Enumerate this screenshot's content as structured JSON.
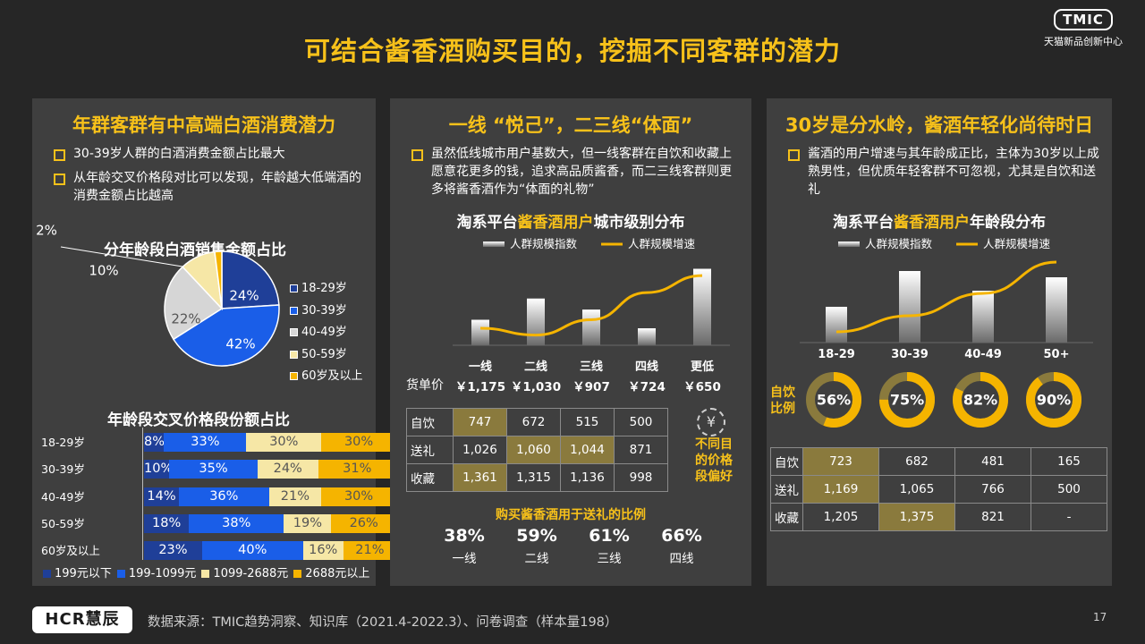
{
  "title": "可结合酱香酒购买目的，挖掘不同客群的潜力",
  "brand": {
    "logo": "TMIC",
    "sub": "天猫新品创新中心"
  },
  "left": {
    "title": "年群客群有中高端白酒消费潜力",
    "bullets": [
      "30-39岁人群的白酒消费金额占比最大",
      "从年龄交叉价格段对比可以发现，年龄越大低端酒的消费金额占比越高"
    ]
  },
  "middle": {
    "title": "一线 “悦己”，二三线“体面”",
    "bullet": "虽然低线城市用户基数大，但一线客群在自饮和收藏上愿意花更多的钱，追求高品质酱香，而二三线客群则更多将酱香酒作为“体面的礼物”",
    "chart_title_a": "淘系平台",
    "chart_title_b": "酱香酒用户",
    "chart_title_c": "城市级别分布",
    "price_label": "货单价",
    "prices": [
      "￥1,175",
      "￥1,030",
      "￥907",
      "￥724",
      "￥650"
    ],
    "table_rows": [
      {
        "label": "自饮",
        "cells": [
          "747",
          "672",
          "515",
          "500"
        ]
      },
      {
        "label": "送礼",
        "cells": [
          "1,026",
          "1,060",
          "1,044",
          "871"
        ]
      },
      {
        "label": "收藏",
        "cells": [
          "1,361",
          "1,315",
          "1,136",
          "998"
        ]
      }
    ],
    "side_note": [
      "不同目",
      "的价格",
      "段偏好"
    ],
    "side_icon": "¥",
    "gift_title": "购买酱香酒用于送礼的比例",
    "gift": [
      {
        "value": "38%",
        "label": "一线"
      },
      {
        "value": "59%",
        "label": "二线"
      },
      {
        "value": "61%",
        "label": "三线"
      },
      {
        "value": "66%",
        "label": "四线"
      }
    ]
  },
  "right": {
    "title": "30岁是分水岭，酱酒年轻化尚待时日",
    "bullet": "酱酒的用户增速与其年龄成正比，主体为30岁以上成熟男性，但优质年轻客群不可忽视，尤其是自饮和送礼",
    "chart_title_a": "淘系平台",
    "chart_title_b": "酱香酒用户",
    "chart_title_c": "年龄段分布",
    "ring_label": [
      "自饮",
      "比例"
    ],
    "table_rows": [
      {
        "label": "自饮",
        "cells": [
          "723",
          "682",
          "481",
          "165"
        ]
      },
      {
        "label": "送礼",
        "cells": [
          "1,169",
          "1,065",
          "766",
          "500"
        ]
      },
      {
        "label": "收藏",
        "cells": [
          "1,205",
          "1,375",
          "821",
          "-"
        ]
      }
    ]
  },
  "footer": {
    "logo": "HCR慧辰",
    "source": "数据来源：TMIC趋势洞察、知识库（2021.4-2022.3）、问卷调查（样本量198）",
    "page": "17"
  },
  "chart_data": [
    {
      "type": "pie",
      "title": "分年龄段白酒销售金额占比",
      "labels": [
        "18-29岁",
        "30-39岁",
        "40-49岁",
        "50-59岁",
        "60岁及以上"
      ],
      "values": [
        24,
        42,
        22,
        10,
        2
      ],
      "value_labels": [
        "24%",
        "42%",
        "22%",
        "10%",
        "2%"
      ],
      "colors": [
        "#1f3f98",
        "#1a5ee8",
        "#d6d6d6",
        "#f6e7a6",
        "#f5b400"
      ],
      "legend_position": "right"
    },
    {
      "type": "bar",
      "orientation": "horizontal-stacked-100",
      "title": "年龄段交叉价格段份额占比",
      "categories": [
        "18-29岁",
        "30-39岁",
        "40-49岁",
        "50-59岁",
        "60岁及以上"
      ],
      "series": [
        {
          "name": "199元以下",
          "color": "#1f3f98",
          "values": [
            8,
            10,
            14,
            18,
            23
          ],
          "labels": [
            "8%",
            "10%",
            "14%",
            "18%",
            "23%"
          ]
        },
        {
          "name": "199-1099元",
          "color": "#1a5ee8",
          "values": [
            33,
            35,
            36,
            38,
            40
          ],
          "labels": [
            "33%",
            "35%",
            "36%",
            "38%",
            "40%"
          ]
        },
        {
          "name": "1099-2688元",
          "color": "#f6e7a6",
          "values": [
            30,
            24,
            21,
            19,
            16
          ],
          "labels": [
            "30%",
            "24%",
            "21%",
            "19%",
            "16%"
          ]
        },
        {
          "name": "2688元以上",
          "color": "#f5b400",
          "values": [
            30,
            31,
            30,
            26,
            21
          ],
          "labels": [
            "30%",
            "31%",
            "30%",
            "26%",
            "21%"
          ]
        }
      ],
      "legend_position": "bottom"
    },
    {
      "type": "bar",
      "title": "淘系平台酱香酒用户城市级别分布",
      "categories": [
        "一线",
        "二线",
        "三线",
        "四线",
        "更低"
      ],
      "series": [
        {
          "name": "人群规模指数",
          "kind": "bar",
          "values": [
            30,
            55,
            42,
            20,
            90
          ]
        },
        {
          "name": "人群规模增速",
          "kind": "line",
          "color": "#f5b400",
          "values": [
            20,
            12,
            30,
            62,
            82
          ]
        }
      ],
      "legend_position": "top",
      "axes_shown": false
    },
    {
      "type": "bar",
      "title": "淘系平台酱香酒用户年龄段分布",
      "categories": [
        "18-29",
        "30-39",
        "40-49",
        "50+"
      ],
      "series": [
        {
          "name": "人群规模指数",
          "kind": "bar",
          "values": [
            40,
            80,
            58,
            73
          ]
        },
        {
          "name": "人群规模增速",
          "kind": "line",
          "color": "#f5b400",
          "values": [
            12,
            30,
            55,
            90
          ]
        }
      ],
      "legend_position": "top",
      "axes_shown": false
    },
    {
      "type": "pie",
      "subtype": "donut-gauges",
      "title": "自饮比例",
      "labels": [
        "18-29",
        "30-39",
        "40-49",
        "50+"
      ],
      "values": [
        56,
        75,
        82,
        90
      ],
      "value_labels": [
        "56%",
        "75%",
        "82%",
        "90%"
      ]
    }
  ]
}
